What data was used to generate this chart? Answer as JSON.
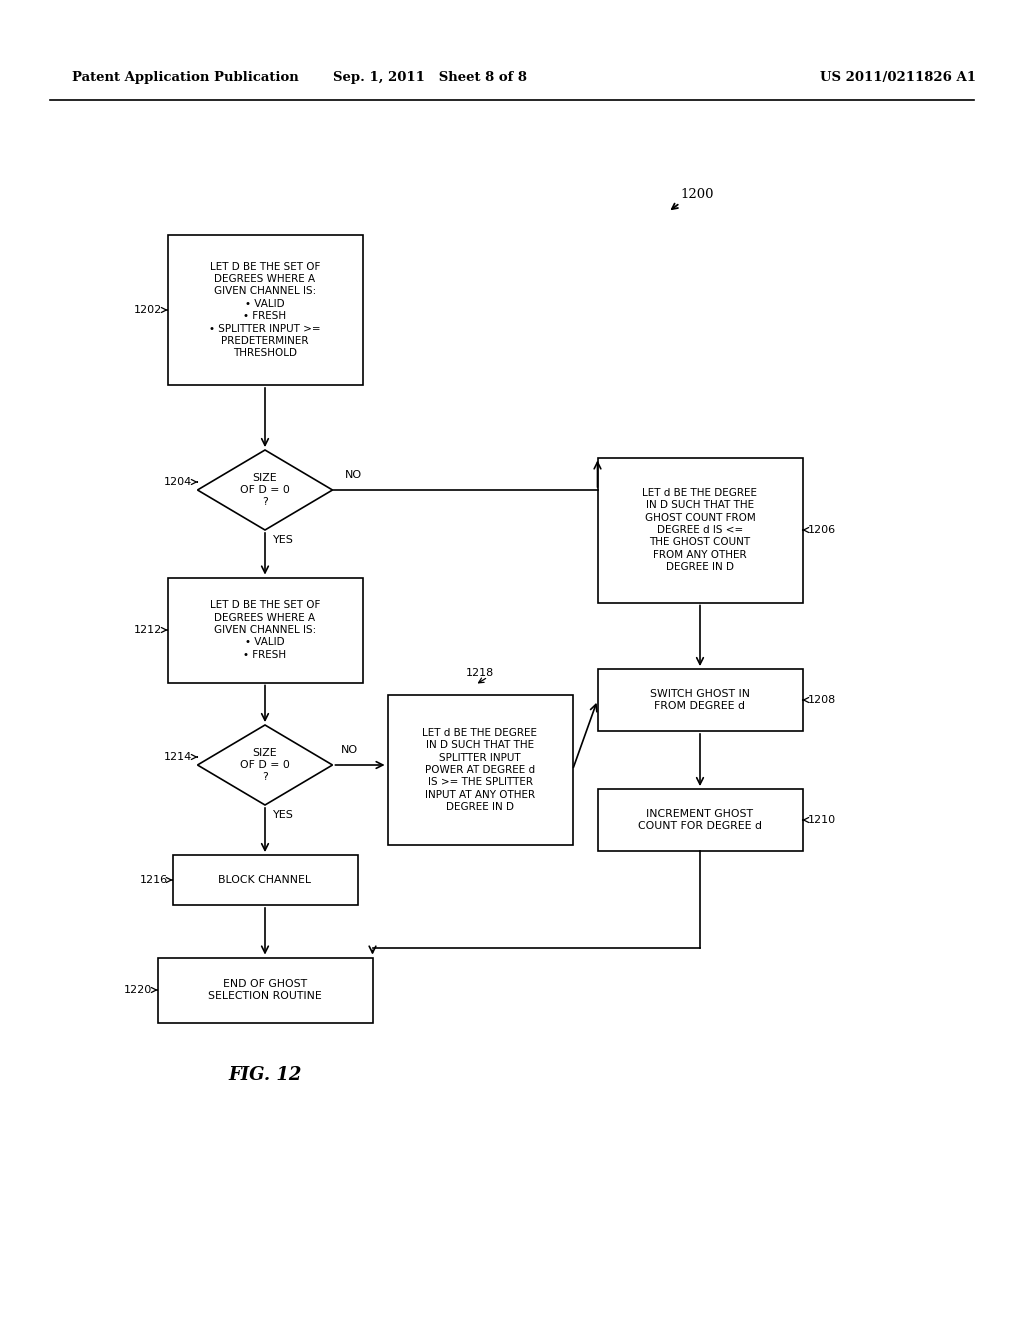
{
  "background_color": "#ffffff",
  "header_left": "Patent Application Publication",
  "header_center": "Sep. 1, 2011   Sheet 8 of 8",
  "header_right": "US 2011/0211826 A1",
  "fig_label": "FIG. 12",
  "diagram_label": "1200"
}
